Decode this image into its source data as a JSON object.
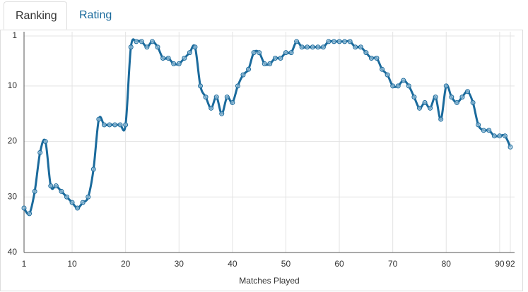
{
  "tabs": [
    "Ranking",
    "Rating"
  ],
  "chart_data": {
    "type": "line",
    "xlabel": "Matches Played",
    "x": [
      1,
      2,
      3,
      4,
      5,
      6,
      7,
      8,
      9,
      10,
      11,
      12,
      13,
      14,
      15,
      16,
      17,
      18,
      19,
      20,
      21,
      22,
      23,
      24,
      25,
      26,
      27,
      28,
      29,
      30,
      31,
      32,
      33,
      34,
      35,
      36,
      37,
      38,
      39,
      40,
      41,
      42,
      43,
      44,
      45,
      46,
      47,
      48,
      49,
      50,
      51,
      52,
      53,
      54,
      55,
      56,
      57,
      58,
      59,
      60,
      61,
      62,
      63,
      64,
      65,
      66,
      67,
      68,
      69,
      70,
      71,
      72,
      73,
      74,
      75,
      76,
      77,
      78,
      79,
      80,
      81,
      82,
      83,
      84,
      85,
      86,
      87,
      88,
      89,
      90,
      91,
      92
    ],
    "series": [
      {
        "name": "Ranking",
        "color": "#1a6a9c",
        "values": [
          32,
          33,
          29,
          22,
          20,
          28,
          28,
          29,
          30,
          31,
          32,
          31,
          30,
          25,
          16,
          17,
          17,
          17,
          17,
          17,
          3,
          2,
          2,
          3,
          2,
          3,
          5,
          5,
          6,
          6,
          5,
          4,
          3,
          10,
          12,
          14,
          12,
          15,
          12,
          13,
          10,
          8,
          7,
          4,
          4,
          6,
          6,
          5,
          5,
          4,
          4,
          2,
          3,
          3,
          3,
          3,
          3,
          2,
          2,
          2,
          2,
          2,
          3,
          3,
          4,
          5,
          5,
          7,
          8,
          10,
          10,
          9,
          10,
          12,
          14,
          13,
          14,
          12,
          16,
          10,
          12,
          13,
          12,
          11,
          13,
          17,
          18,
          18,
          19,
          19,
          19,
          21
        ]
      }
    ],
    "xlim": [
      1,
      92
    ],
    "xticks": [
      1,
      10,
      20,
      30,
      40,
      50,
      60,
      70,
      80,
      90,
      92
    ],
    "ylim": [
      1,
      40
    ],
    "yticks": [
      1,
      10,
      20,
      30,
      40
    ],
    "y_inverted": true,
    "grid": true
  }
}
